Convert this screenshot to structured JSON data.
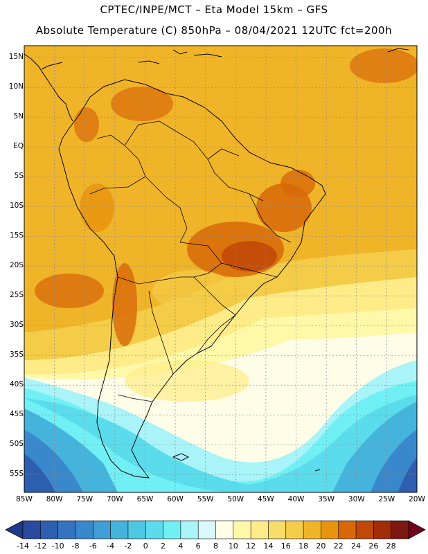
{
  "header": {
    "line1": "CPTEC/INPE/MCT –  Eta Model 15km – GFS",
    "line2": "Absolute Temperature (C) 850hPa – 08/04/2021 12UTC fct=200h"
  },
  "map": {
    "lat_ticks": [
      "15N",
      "10N",
      "5N",
      "EQ",
      "5S",
      "10S",
      "15S",
      "20S",
      "25S",
      "30S",
      "35S",
      "40S",
      "45S",
      "50S",
      "55S"
    ],
    "lon_ticks": [
      "85W",
      "80W",
      "75W",
      "70W",
      "65W",
      "60W",
      "55W",
      "50W",
      "45W",
      "40W",
      "35W",
      "30W",
      "25W",
      "20W"
    ],
    "extent": {
      "lon_min": -85,
      "lon_max": -20,
      "lat_min": -58,
      "lat_max": 17
    }
  },
  "colorbar": {
    "labels": [
      "-14",
      "-12",
      "-10",
      "-8",
      "-6",
      "-4",
      "-2",
      "0",
      "2",
      "4",
      "6",
      "8",
      "10",
      "12",
      "14",
      "16",
      "18",
      "20",
      "22",
      "24",
      "26",
      "28"
    ],
    "colors": [
      "#2a4aa0",
      "#2d5eb0",
      "#3473c0",
      "#3a88cc",
      "#3f9ed4",
      "#45b4dc",
      "#4dc8e4",
      "#5adcec",
      "#70f0f4",
      "#a8f4f8",
      "#d8f8fc",
      "#fffce8",
      "#fff8a8",
      "#ffec88",
      "#f8dc68",
      "#f4cc48",
      "#f0b428",
      "#e8940c",
      "#d86808",
      "#c04808",
      "#a02c08",
      "#7c1810"
    ],
    "low_color": "#1e3a8a",
    "high_color": "#70001c"
  }
}
